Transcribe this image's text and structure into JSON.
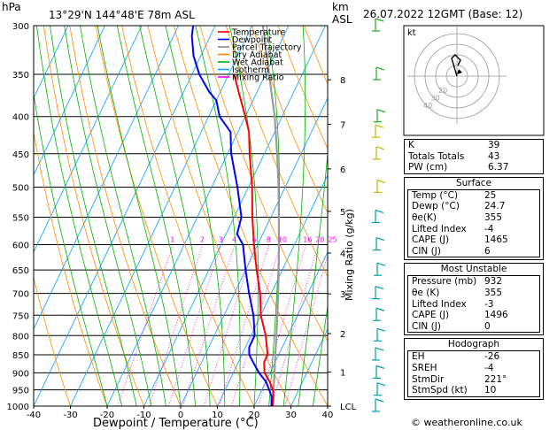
{
  "header": {
    "location": "13°29'N  144°48'E  78m  ASL",
    "hpa_label": "hPa",
    "km_label": "km",
    "asl_label": "ASL",
    "datetime": "26.07.2022  12GMT  (Base: 12)"
  },
  "chart_data": {
    "type": "skew-t",
    "xlabel": "Dewpoint / Temperature (°C)",
    "right_axis_label": "Mixing Ratio (g/kg)",
    "x_ticks": [
      -40,
      -30,
      -20,
      -10,
      0,
      10,
      20,
      30,
      40
    ],
    "pressure_levels": [
      300,
      350,
      400,
      450,
      500,
      550,
      600,
      650,
      700,
      750,
      800,
      850,
      900,
      950,
      1000
    ],
    "pressure_range": [
      300,
      1000
    ],
    "temp_range": [
      -40,
      40
    ],
    "km_ticks": [
      {
        "label": "8",
        "p": 356
      },
      {
        "label": "7",
        "p": 410
      },
      {
        "label": "6",
        "p": 472
      },
      {
        "label": "5",
        "p": 540
      },
      {
        "label": "4",
        "p": 616
      },
      {
        "label": "3",
        "p": 701
      },
      {
        "label": "2",
        "p": 795
      },
      {
        "label": "1",
        "p": 898
      },
      {
        "label": "LCL",
        "p": 1000
      }
    ],
    "mixing_ratio_labels": [
      "1",
      "2",
      "3",
      "4",
      "6",
      "8",
      "10",
      "16",
      "20",
      "25"
    ],
    "mixing_ratio_values": [
      1,
      2,
      3,
      4,
      6,
      8,
      10,
      16,
      20,
      25
    ],
    "legend": [
      {
        "name": "Temperature",
        "color": "#ff0000"
      },
      {
        "name": "Dewpoint",
        "color": "#0000ff"
      },
      {
        "name": "Parcel Trajectory",
        "color": "#888888"
      },
      {
        "name": "Dry Adiabat",
        "color": "#ff8c00"
      },
      {
        "name": "Wet Adiabat",
        "color": "#00b000"
      },
      {
        "name": "Isotherm",
        "color": "#00a0ff"
      },
      {
        "name": "Mixing Ratio",
        "color": "#ff00ff"
      }
    ],
    "temperature": [
      {
        "p": 1000,
        "t": 25
      },
      {
        "p": 970,
        "t": 24
      },
      {
        "p": 950,
        "t": 23
      },
      {
        "p": 925,
        "t": 21
      },
      {
        "p": 900,
        "t": 18.5
      },
      {
        "p": 870,
        "t": 17
      },
      {
        "p": 850,
        "t": 17
      },
      {
        "p": 800,
        "t": 14
      },
      {
        "p": 750,
        "t": 10
      },
      {
        "p": 700,
        "t": 7
      },
      {
        "p": 650,
        "t": 3
      },
      {
        "p": 600,
        "t": -1
      },
      {
        "p": 550,
        "t": -5
      },
      {
        "p": 500,
        "t": -9
      },
      {
        "p": 450,
        "t": -14
      },
      {
        "p": 420,
        "t": -17
      },
      {
        "p": 400,
        "t": -20
      },
      {
        "p": 370,
        "t": -25
      },
      {
        "p": 350,
        "t": -28.5
      }
    ],
    "dewpoint": [
      {
        "p": 1000,
        "t": 24.7
      },
      {
        "p": 970,
        "t": 23.5
      },
      {
        "p": 950,
        "t": 22
      },
      {
        "p": 925,
        "t": 20
      },
      {
        "p": 900,
        "t": 17
      },
      {
        "p": 870,
        "t": 14
      },
      {
        "p": 850,
        "t": 12
      },
      {
        "p": 830,
        "t": 11
      },
      {
        "p": 800,
        "t": 11
      },
      {
        "p": 750,
        "t": 8
      },
      {
        "p": 700,
        "t": 4
      },
      {
        "p": 650,
        "t": 0
      },
      {
        "p": 600,
        "t": -4
      },
      {
        "p": 580,
        "t": -7
      },
      {
        "p": 550,
        "t": -8
      },
      {
        "p": 500,
        "t": -13
      },
      {
        "p": 450,
        "t": -19
      },
      {
        "p": 440,
        "t": -20
      },
      {
        "p": 420,
        "t": -22
      },
      {
        "p": 400,
        "t": -27
      },
      {
        "p": 380,
        "t": -30
      },
      {
        "p": 370,
        "t": -33
      },
      {
        "p": 350,
        "t": -38
      },
      {
        "p": 330,
        "t": -42
      },
      {
        "p": 310,
        "t": -45
      },
      {
        "p": 300,
        "t": -46
      }
    ],
    "parcel": [
      {
        "p": 1000,
        "t": 25
      },
      {
        "p": 950,
        "t": 23.2
      },
      {
        "p": 900,
        "t": 21.2
      },
      {
        "p": 850,
        "t": 19.1
      },
      {
        "p": 800,
        "t": 16.9
      },
      {
        "p": 750,
        "t": 14.5
      },
      {
        "p": 700,
        "t": 11.9
      },
      {
        "p": 650,
        "t": 9.0
      },
      {
        "p": 600,
        "t": 5.8
      },
      {
        "p": 550,
        "t": 2.2
      },
      {
        "p": 500,
        "t": -1.8
      },
      {
        "p": 450,
        "t": -6.5
      },
      {
        "p": 400,
        "t": -12
      },
      {
        "p": 350,
        "t": -19
      },
      {
        "p": 300,
        "t": -27
      }
    ],
    "wind_barbs_p": [
      300,
      350,
      400,
      420,
      450,
      500,
      550,
      600,
      650,
      700,
      750,
      800,
      850,
      900,
      950,
      1000
    ]
  },
  "hodograph": {
    "unit_label": "kt",
    "ring_labels": [
      "20",
      "30",
      "40"
    ]
  },
  "indices": {
    "top": [
      {
        "label": "K",
        "value": "39"
      },
      {
        "label": "Totals Totals",
        "value": "43"
      },
      {
        "label": "PW (cm)",
        "value": "6.37"
      }
    ],
    "surface": {
      "title": "Surface",
      "rows": [
        {
          "label": "Temp (°C)",
          "value": "25"
        },
        {
          "label": "Dewp (°C)",
          "value": "24.7"
        },
        {
          "label": "θe(K)",
          "value": "355"
        },
        {
          "label": "Lifted Index",
          "value": "-4"
        },
        {
          "label": "CAPE (J)",
          "value": "1465"
        },
        {
          "label": "CIN (J)",
          "value": "6"
        }
      ]
    },
    "unstable": {
      "title": "Most Unstable",
      "rows": [
        {
          "label": "Pressure (mb)",
          "value": "932"
        },
        {
          "label": "θe (K)",
          "value": "355"
        },
        {
          "label": "Lifted Index",
          "value": "-3"
        },
        {
          "label": "CAPE (J)",
          "value": "1496"
        },
        {
          "label": "CIN (J)",
          "value": "0"
        }
      ]
    },
    "hodo": {
      "title": "Hodograph",
      "rows": [
        {
          "label": "EH",
          "value": "-26"
        },
        {
          "label": "SREH",
          "value": "-4"
        },
        {
          "label": "StmDir",
          "value": "221°"
        },
        {
          "label": "StmSpd (kt)",
          "value": "10"
        }
      ]
    }
  },
  "footer": {
    "copyright_icon": "copyright-icon",
    "text": "weatheronline.co.uk"
  }
}
